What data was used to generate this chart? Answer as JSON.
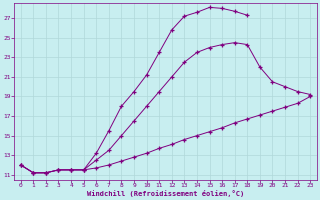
{
  "xlabel": "Windchill (Refroidissement éolien,°C)",
  "bg_color": "#c8eef0",
  "line_color": "#800080",
  "grid_color": "#b0d8da",
  "xmin": 0,
  "xmax": 23,
  "ymin": 11,
  "ymax": 27,
  "yticks": [
    11,
    13,
    15,
    17,
    19,
    21,
    23,
    25,
    27
  ],
  "xticks": [
    0,
    1,
    2,
    3,
    4,
    5,
    6,
    7,
    8,
    9,
    10,
    11,
    12,
    13,
    14,
    15,
    16,
    17,
    18,
    19,
    20,
    21,
    22,
    23
  ],
  "curve1_x": [
    0,
    1,
    2,
    3,
    4,
    5,
    6,
    7,
    8,
    9,
    10,
    11,
    12,
    13,
    14,
    15,
    16,
    17,
    18
  ],
  "curve1_y": [
    12.0,
    11.2,
    11.2,
    11.5,
    11.5,
    11.5,
    13.2,
    15.5,
    18.0,
    19.5,
    21.2,
    23.5,
    25.8,
    27.2,
    27.6,
    28.1,
    28.0,
    27.7,
    27.3
  ],
  "curve2_x": [
    0,
    1,
    2,
    3,
    4,
    5,
    6,
    7,
    8,
    9,
    10,
    11,
    12,
    13,
    14,
    15,
    16,
    17,
    18,
    19,
    20,
    21,
    22,
    23
  ],
  "curve2_y": [
    12.0,
    11.2,
    11.2,
    11.5,
    11.5,
    11.5,
    12.5,
    13.5,
    15.0,
    16.5,
    18.0,
    19.5,
    21.0,
    22.5,
    23.5,
    24.0,
    24.3,
    24.5,
    24.3,
    22.0,
    20.5,
    20.0,
    19.5,
    19.2
  ],
  "curve3_x": [
    0,
    1,
    2,
    3,
    4,
    5,
    6,
    7,
    8,
    9,
    10,
    11,
    12,
    13,
    14,
    15,
    16,
    17,
    18,
    19,
    20,
    21,
    22,
    23
  ],
  "curve3_y": [
    12.0,
    11.2,
    11.2,
    11.5,
    11.5,
    11.5,
    11.7,
    12.0,
    12.4,
    12.8,
    13.2,
    13.7,
    14.1,
    14.6,
    15.0,
    15.4,
    15.8,
    16.3,
    16.7,
    17.1,
    17.5,
    17.9,
    18.3,
    19.0
  ]
}
